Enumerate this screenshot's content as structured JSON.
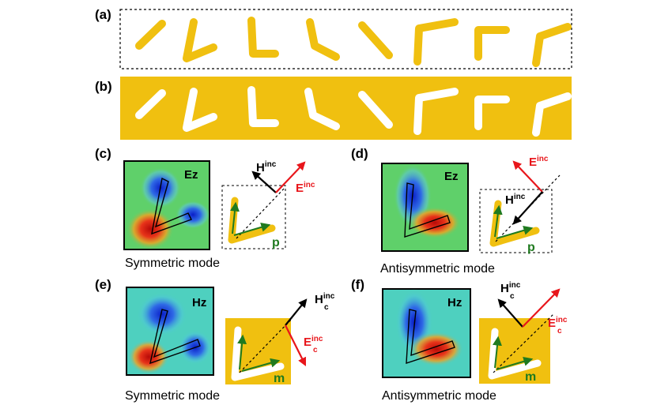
{
  "panels": {
    "a": {
      "label": "(a)"
    },
    "b": {
      "label": "(b)"
    },
    "c": {
      "label": "(c)",
      "caption": "Symmetric mode",
      "field": "Ez",
      "v1_main": "H",
      "v1_sup": "inc",
      "v1_sub": "",
      "v2_main": "E",
      "v2_sup": "inc",
      "v2_sub": "",
      "moment": "p"
    },
    "d": {
      "label": "(d)",
      "caption": "Antisymmetric mode",
      "field": "Ez",
      "v1_main": "E",
      "v1_sup": "inc",
      "v1_sub": "",
      "v2_main": "H",
      "v2_sup": "inc",
      "v2_sub": "",
      "moment": "p"
    },
    "e": {
      "label": "(e)",
      "caption": "Symmetric mode",
      "field": "Hz",
      "v1_main": "H",
      "v1_sup": "inc",
      "v1_sub": "c",
      "v2_main": "E",
      "v2_sup": "inc",
      "v2_sub": "c",
      "moment": "m"
    },
    "f": {
      "label": "(f)",
      "caption": "Antisymmetric mode",
      "field": "Hz",
      "v1_main": "H",
      "v1_sup": "inc",
      "v1_sub": "c",
      "v2_main": "E",
      "v2_sup": "inc",
      "v2_sub": "c",
      "moment": "m"
    }
  },
  "colors": {
    "gold": "#f0c010",
    "heat_background": "#5fd06a",
    "hz_background": "#4ed0bf",
    "red_vector": "#e8161b",
    "black_vector": "#000000",
    "green_moment": "#1f7a1f",
    "blue_lobe": "#1a3fd6",
    "red_lobe": "#d81810"
  }
}
